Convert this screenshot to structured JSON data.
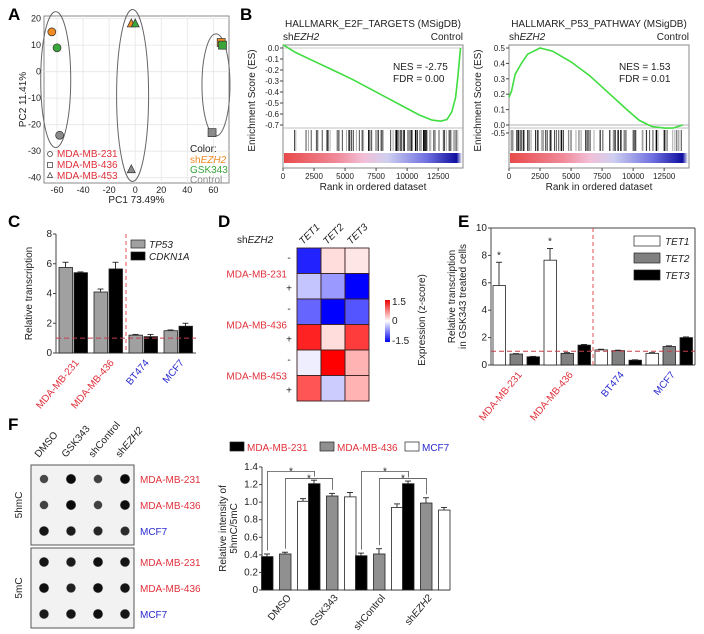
{
  "figure": {
    "panels": [
      "A",
      "B",
      "C",
      "D",
      "E",
      "F"
    ]
  },
  "chart_data": [
    {
      "panel": "A",
      "type": "scatter",
      "xlabel": "PC1 73.49%",
      "ylabel": "PC2 11.41%",
      "xlim": [
        -70,
        72
      ],
      "ylim": [
        -42,
        21
      ],
      "xticks": [
        -60,
        -40,
        -20,
        0,
        20,
        40,
        60
      ],
      "yticks": [
        -40,
        -30,
        -20,
        -10,
        0,
        10,
        20
      ],
      "grid": true,
      "shape_legend": [
        {
          "shape": "circle",
          "label": "MDA-MB-231"
        },
        {
          "shape": "square",
          "label": "MDA-MB-436"
        },
        {
          "shape": "triangle",
          "label": "MDA-MB-453"
        }
      ],
      "color_legend_title": "Color:",
      "color_legend": [
        {
          "label": "shEZH2",
          "color": "#f08a24"
        },
        {
          "label": "GSK343",
          "color": "#3aa63a"
        },
        {
          "label": "Control",
          "color": "#8a8a8a"
        }
      ],
      "points": [
        {
          "line": "MDA-MB-231",
          "group": "shEZH2",
          "x": -64,
          "y": 15
        },
        {
          "line": "MDA-MB-231",
          "group": "GSK343",
          "x": -60,
          "y": 9
        },
        {
          "line": "MDA-MB-231",
          "group": "Control",
          "x": -58,
          "y": -24
        },
        {
          "line": "MDA-MB-453",
          "group": "shEZH2",
          "x": -3,
          "y": 18
        },
        {
          "line": "MDA-MB-453",
          "group": "GSK343",
          "x": 0,
          "y": 18
        },
        {
          "line": "MDA-MB-453",
          "group": "Control",
          "x": -3,
          "y": -37
        },
        {
          "line": "MDA-MB-436",
          "group": "shEZH2",
          "x": 66,
          "y": 11
        },
        {
          "line": "MDA-MB-436",
          "group": "GSK343",
          "x": 67,
          "y": 10
        },
        {
          "line": "MDA-MB-436",
          "group": "Control",
          "x": 59,
          "y": -23
        }
      ],
      "ellipses": [
        "MDA-MB-231",
        "MDA-MB-453",
        "MDA-MB-436"
      ]
    },
    {
      "panel": "B1",
      "type": "line",
      "title": "HALLMARK_E2F_TARGETS (MSigDB)",
      "left_label": "shEZH2",
      "right_label": "Control",
      "ylabel": "Enrichment Score (ES)",
      "xlabel": "Rank in ordered dataset",
      "ylim": [
        -0.7,
        0.0
      ],
      "yticks": [
        0.0,
        -0.1,
        -0.2,
        -0.3,
        -0.4,
        -0.5,
        -0.6,
        -0.7
      ],
      "xlim": [
        0,
        14500
      ],
      "xticks": [
        0,
        2500,
        5000,
        7500,
        10000,
        12500
      ],
      "annotation": [
        "NES = -2.75",
        "FDR = 0.00"
      ],
      "x": [
        0,
        1000,
        2500,
        4000,
        5500,
        7000,
        8500,
        10000,
        11000,
        12000,
        12700,
        13200,
        13600,
        13900,
        14100,
        14300
      ],
      "y": [
        0.03,
        -0.04,
        -0.12,
        -0.2,
        -0.28,
        -0.37,
        -0.46,
        -0.55,
        -0.61,
        -0.655,
        -0.665,
        -0.65,
        -0.58,
        -0.45,
        -0.25,
        0.0
      ]
    },
    {
      "panel": "B2",
      "type": "line",
      "title": "HALLMARK_P53_PATHWAY (MSigDB)",
      "left_label": "shEZH2",
      "right_label": "Control",
      "ylabel": "Enrichment Score (ES)",
      "xlabel": "Rank in ordered dataset",
      "ylim": [
        0.0,
        0.5
      ],
      "yticks": [
        0.5,
        0.4,
        0.3,
        0.2,
        0.1,
        0.0,
        -0.5
      ],
      "xlim": [
        0,
        14500
      ],
      "xticks": [
        0,
        2500,
        5000,
        7500,
        10000,
        12500
      ],
      "annotation": [
        "NES = 1.53",
        "FDR = 0.01"
      ],
      "x": [
        0,
        200,
        500,
        1000,
        1500,
        2500,
        3500,
        5000,
        6500,
        8000,
        9500,
        10500,
        11500,
        12500,
        13200,
        14000
      ],
      "y": [
        0.18,
        0.22,
        0.33,
        0.4,
        0.46,
        0.5,
        0.48,
        0.41,
        0.32,
        0.21,
        0.1,
        0.03,
        -0.01,
        -0.02,
        -0.02,
        0.0
      ]
    },
    {
      "panel": "C",
      "type": "bar",
      "ylabel": "Relative transcription",
      "ylim": [
        0,
        8
      ],
      "yticks": [
        0,
        2,
        4,
        6,
        8
      ],
      "categories": [
        "MDA-MB-231",
        "MDA-MB-436",
        "BT474",
        "MCF7"
      ],
      "category_colors": [
        "#e0313b",
        "#e0313b",
        "#2a2ad0",
        "#2a2ad0"
      ],
      "reference_line": 1,
      "series": [
        {
          "name": "TP53",
          "color": "#a0a0a0",
          "values": [
            5.75,
            4.1,
            1.2,
            1.5
          ],
          "errors": [
            0.35,
            0.2,
            0.05,
            0.05
          ]
        },
        {
          "name": "CDKN1A",
          "color": "#000000",
          "values": [
            5.4,
            5.65,
            1.1,
            1.8
          ],
          "errors": [
            0.05,
            0.45,
            0.15,
            0.2
          ]
        }
      ]
    },
    {
      "panel": "D",
      "type": "heatmap",
      "header_label": "shEZH2",
      "columns": [
        "TET1",
        "TET2",
        "TET3"
      ],
      "row_groups": [
        "MDA-MB-231",
        "MDA-MB-436",
        "MDA-MB-453"
      ],
      "row_signs": [
        "-",
        "+",
        "-",
        "+",
        "-",
        "+"
      ],
      "values": [
        [
          -1.3,
          0.2,
          0.15
        ],
        [
          -0.35,
          -0.6,
          -1.5
        ],
        [
          -0.9,
          -1.5,
          -1.0
        ],
        [
          1.3,
          0.2,
          1.15
        ],
        [
          -0.1,
          1.5,
          0.45
        ],
        [
          1.0,
          -0.3,
          0.45
        ]
      ],
      "colorbar_label": "Expression (z-score)",
      "colorbar_ticks": [
        1.5,
        0,
        -1.5
      ],
      "range": [
        -1.5,
        1.5
      ]
    },
    {
      "panel": "E",
      "type": "bar",
      "ylabel": "Relative transcription in GSK343 treated cells",
      "ylabel_lines": [
        "Relative transcription",
        "in GSK343 treated cells"
      ],
      "ylim": [
        0,
        10
      ],
      "yticks": [
        0,
        2,
        4,
        6,
        8,
        10
      ],
      "categories": [
        "MDA-MB-231",
        "MDA-MB-436",
        "BT474",
        "MCF7"
      ],
      "category_colors": [
        "#e0313b",
        "#e0313b",
        "#2a2ad0",
        "#2a2ad0"
      ],
      "reference_line": 1,
      "significance": [
        "*",
        "*",
        "",
        ""
      ],
      "series": [
        {
          "name": "TET1",
          "color": "#ffffff",
          "values": [
            5.8,
            7.65,
            1.1,
            0.85
          ],
          "errors": [
            1.7,
            0.85,
            0.05,
            0.05
          ]
        },
        {
          "name": "TET2",
          "color": "#808080",
          "values": [
            0.8,
            0.85,
            1.05,
            1.35
          ],
          "errors": [
            0.03,
            0.05,
            0.03,
            0.05
          ]
        },
        {
          "name": "TET3",
          "color": "#000000",
          "values": [
            0.6,
            1.45,
            0.35,
            2.0
          ],
          "errors": [
            0.03,
            0.05,
            0.03,
            0.05
          ]
        }
      ]
    },
    {
      "panel": "F-blot",
      "type": "table",
      "columns": [
        "DMSO",
        "GSK343",
        "shControl",
        "shEZH2"
      ],
      "blocks": [
        {
          "label": "5hmC",
          "rows": [
            "MDA-MB-231",
            "MDA-MB-436",
            "MCF7"
          ],
          "row_colors": [
            "#e0313b",
            "#e0313b",
            "#2a2ad0"
          ],
          "intensity": [
            [
              0.45,
              1.0,
              0.5,
              1.0
            ],
            [
              0.5,
              1.0,
              0.5,
              0.95
            ],
            [
              0.9,
              0.85,
              0.75,
              0.7
            ]
          ]
        },
        {
          "label": "5mC",
          "rows": [
            "MDA-MB-231",
            "MDA-MB-436",
            "MCF7"
          ],
          "row_colors": [
            "#e0313b",
            "#e0313b",
            "#2a2ad0"
          ],
          "intensity": [
            [
              0.9,
              0.85,
              0.95,
              0.9
            ],
            [
              0.95,
              0.8,
              0.95,
              0.9
            ],
            [
              0.85,
              0.9,
              0.95,
              0.9
            ]
          ]
        }
      ]
    },
    {
      "panel": "F-bar",
      "type": "bar",
      "ylabel": "Relative intensity of 5hmC/5mC",
      "ylabel_lines": [
        "Relative intensity of",
        "5hmC/5mC"
      ],
      "ylim": [
        0,
        1.4
      ],
      "yticks": [
        0,
        0.2,
        0.4,
        0.6,
        0.8,
        1.0,
        1.2,
        1.4
      ],
      "ytick_labels": [
        "0",
        "0.2",
        "0.4",
        "0.6",
        "0.8",
        "1.0",
        "1.2",
        "1.4"
      ],
      "categories": [
        "DMSO",
        "GSK343",
        "shControl",
        "shEZH2"
      ],
      "legend_colors": [
        "#e0313b",
        "#e0313b",
        "#2a2ad0"
      ],
      "series": [
        {
          "name": "MDA-MB-231",
          "color": "#000000",
          "values": [
            0.38,
            1.21,
            0.39,
            1.21
          ],
          "errors": [
            0.03,
            0.04,
            0.03,
            0.03
          ]
        },
        {
          "name": "MDA-MB-436",
          "color": "#909090",
          "values": [
            0.41,
            1.07,
            0.41,
            0.99
          ],
          "errors": [
            0.02,
            0.03,
            0.06,
            0.06
          ]
        },
        {
          "name": "MCF7",
          "color": "#ffffff",
          "values": [
            1.01,
            1.06,
            0.94,
            0.91
          ],
          "errors": [
            0.03,
            0.05,
            0.04,
            0.03
          ]
        }
      ],
      "significance_brackets": [
        {
          "from": [
            0,
            0
          ],
          "to": [
            1,
            0
          ],
          "label": "*"
        },
        {
          "from": [
            0,
            1
          ],
          "to": [
            1,
            1
          ],
          "label": "*"
        },
        {
          "from": [
            2,
            0
          ],
          "to": [
            3,
            0
          ],
          "label": "*"
        },
        {
          "from": [
            2,
            1
          ],
          "to": [
            3,
            1
          ],
          "label": "*"
        }
      ]
    }
  ]
}
